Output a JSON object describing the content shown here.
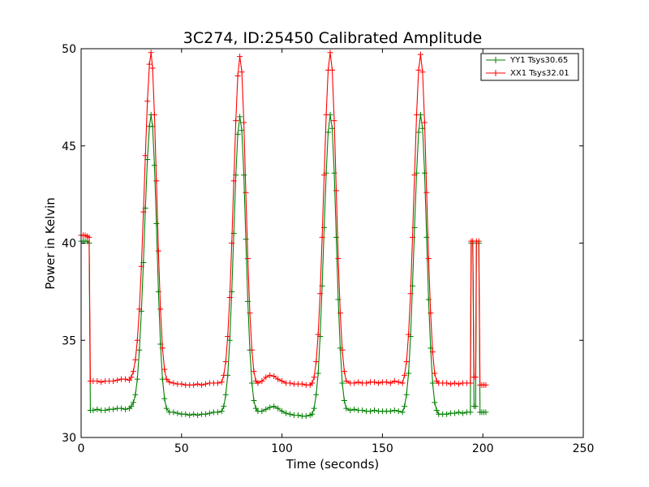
{
  "chart_data": {
    "type": "line",
    "title": "3C274, ID:25450 Calibrated Amplitude",
    "xlabel": "Time (seconds)",
    "ylabel": "Power in Kelvin",
    "xlim": [
      0,
      250
    ],
    "ylim": [
      30,
      50
    ],
    "xticks": [
      "0",
      "50",
      "100",
      "150",
      "200",
      "250"
    ],
    "yticks": [
      "30",
      "35",
      "40",
      "45",
      "50"
    ],
    "grid": false,
    "legend_position": "top-right",
    "marker": "+",
    "series": [
      {
        "name": "YY1 Tsys30.65",
        "color": "#008000",
        "points": [
          [
            0,
            40.1
          ],
          [
            1,
            40.1
          ],
          [
            2,
            40.1
          ],
          [
            3,
            40.1
          ],
          [
            4,
            40.0
          ],
          [
            4.6,
            31.4
          ],
          [
            6,
            31.4
          ],
          [
            8,
            31.45
          ],
          [
            10,
            31.4
          ],
          [
            12,
            31.4
          ],
          [
            14,
            31.45
          ],
          [
            16,
            31.45
          ],
          [
            18,
            31.5
          ],
          [
            20,
            31.5
          ],
          [
            22,
            31.45
          ],
          [
            24,
            31.5
          ],
          [
            25,
            31.6
          ],
          [
            26,
            31.8
          ],
          [
            27,
            32.2
          ],
          [
            28,
            33.0
          ],
          [
            29,
            34.5
          ],
          [
            30,
            36.5
          ],
          [
            31,
            39.0
          ],
          [
            32,
            41.8
          ],
          [
            33,
            44.3
          ],
          [
            34,
            46.0
          ],
          [
            34.8,
            46.6
          ],
          [
            35.6,
            46.0
          ],
          [
            36.5,
            44.0
          ],
          [
            37.5,
            41.0
          ],
          [
            38.5,
            37.5
          ],
          [
            39.5,
            34.8
          ],
          [
            40.5,
            33.0
          ],
          [
            41.5,
            32.0
          ],
          [
            42.5,
            31.5
          ],
          [
            44,
            31.3
          ],
          [
            46,
            31.3
          ],
          [
            48,
            31.25
          ],
          [
            50,
            31.2
          ],
          [
            52,
            31.2
          ],
          [
            54,
            31.15
          ],
          [
            56,
            31.2
          ],
          [
            58,
            31.15
          ],
          [
            60,
            31.2
          ],
          [
            62,
            31.2
          ],
          [
            64,
            31.25
          ],
          [
            66,
            31.3
          ],
          [
            68,
            31.3
          ],
          [
            70,
            31.35
          ],
          [
            71,
            31.6
          ],
          [
            72,
            32.2
          ],
          [
            73,
            33.2
          ],
          [
            74,
            35.0
          ],
          [
            75,
            37.5
          ],
          [
            76,
            40.5
          ],
          [
            77,
            43.5
          ],
          [
            78,
            45.6
          ],
          [
            79,
            46.5
          ],
          [
            80,
            45.8
          ],
          [
            81,
            43.5
          ],
          [
            82,
            40.2
          ],
          [
            83,
            37.0
          ],
          [
            84,
            34.5
          ],
          [
            85,
            32.8
          ],
          [
            86,
            31.9
          ],
          [
            87,
            31.5
          ],
          [
            88,
            31.35
          ],
          [
            90,
            31.35
          ],
          [
            92,
            31.45
          ],
          [
            94,
            31.55
          ],
          [
            96,
            31.6
          ],
          [
            98,
            31.5
          ],
          [
            100,
            31.35
          ],
          [
            102,
            31.25
          ],
          [
            104,
            31.2
          ],
          [
            106,
            31.15
          ],
          [
            108,
            31.15
          ],
          [
            110,
            31.1
          ],
          [
            112,
            31.1
          ],
          [
            114,
            31.15
          ],
          [
            115,
            31.2
          ],
          [
            116,
            31.5
          ],
          [
            117,
            32.2
          ],
          [
            118,
            33.3
          ],
          [
            119,
            35.2
          ],
          [
            120,
            37.8
          ],
          [
            121,
            40.8
          ],
          [
            122,
            43.6
          ],
          [
            123,
            45.7
          ],
          [
            124,
            46.6
          ],
          [
            125,
            45.9
          ],
          [
            126,
            43.6
          ],
          [
            127,
            40.3
          ],
          [
            128,
            37.1
          ],
          [
            129,
            34.6
          ],
          [
            130,
            32.8
          ],
          [
            131,
            31.9
          ],
          [
            132,
            31.5
          ],
          [
            134,
            31.4
          ],
          [
            136,
            31.45
          ],
          [
            138,
            31.4
          ],
          [
            140,
            31.4
          ],
          [
            142,
            31.35
          ],
          [
            144,
            31.35
          ],
          [
            146,
            31.4
          ],
          [
            148,
            31.35
          ],
          [
            150,
            31.35
          ],
          [
            152,
            31.35
          ],
          [
            154,
            31.35
          ],
          [
            156,
            31.4
          ],
          [
            158,
            31.35
          ],
          [
            160,
            31.3
          ],
          [
            161,
            31.6
          ],
          [
            162,
            32.2
          ],
          [
            163,
            33.3
          ],
          [
            164,
            35.2
          ],
          [
            165,
            37.8
          ],
          [
            166,
            40.8
          ],
          [
            167,
            43.6
          ],
          [
            168,
            45.7
          ],
          [
            169,
            46.6
          ],
          [
            170,
            45.9
          ],
          [
            171,
            43.6
          ],
          [
            172,
            40.3
          ],
          [
            173,
            37.1
          ],
          [
            174,
            34.6
          ],
          [
            175,
            32.8
          ],
          [
            176,
            31.8
          ],
          [
            177,
            31.4
          ],
          [
            178,
            31.2
          ],
          [
            180,
            31.2
          ],
          [
            182,
            31.2
          ],
          [
            184,
            31.25
          ],
          [
            186,
            31.25
          ],
          [
            188,
            31.3
          ],
          [
            190,
            31.25
          ],
          [
            192,
            31.3
          ],
          [
            193.8,
            31.3
          ],
          [
            194.2,
            40.0
          ],
          [
            195,
            40.0
          ],
          [
            195.6,
            31.6
          ],
          [
            196.4,
            31.6
          ],
          [
            196.8,
            40.0
          ],
          [
            198,
            40.0
          ],
          [
            198.6,
            31.3
          ],
          [
            199.5,
            31.3
          ],
          [
            200.5,
            31.3
          ],
          [
            201.5,
            31.3
          ]
        ]
      },
      {
        "name": "XX1 Tsys32.01",
        "color": "#ff0000",
        "points": [
          [
            0,
            40.4
          ],
          [
            1,
            40.4
          ],
          [
            2,
            40.4
          ],
          [
            3,
            40.35
          ],
          [
            4,
            40.3
          ],
          [
            4.6,
            32.9
          ],
          [
            6,
            32.9
          ],
          [
            8,
            32.9
          ],
          [
            10,
            32.85
          ],
          [
            12,
            32.9
          ],
          [
            14,
            32.9
          ],
          [
            16,
            32.9
          ],
          [
            18,
            32.95
          ],
          [
            20,
            33.0
          ],
          [
            22,
            33.0
          ],
          [
            24,
            32.95
          ],
          [
            25,
            33.1
          ],
          [
            26,
            33.4
          ],
          [
            27,
            34.0
          ],
          [
            28,
            35.0
          ],
          [
            29,
            36.6
          ],
          [
            30,
            38.8
          ],
          [
            31,
            41.6
          ],
          [
            32,
            44.5
          ],
          [
            33,
            47.3
          ],
          [
            34,
            49.2
          ],
          [
            34.8,
            49.8
          ],
          [
            35.6,
            49.0
          ],
          [
            36.5,
            46.6
          ],
          [
            37.5,
            43.2
          ],
          [
            38.5,
            39.6
          ],
          [
            39.5,
            36.6
          ],
          [
            40.5,
            34.6
          ],
          [
            41.5,
            33.5
          ],
          [
            42.5,
            33.0
          ],
          [
            44,
            32.85
          ],
          [
            46,
            32.8
          ],
          [
            48,
            32.75
          ],
          [
            50,
            32.75
          ],
          [
            52,
            32.7
          ],
          [
            54,
            32.7
          ],
          [
            56,
            32.7
          ],
          [
            58,
            32.75
          ],
          [
            60,
            32.7
          ],
          [
            62,
            32.75
          ],
          [
            64,
            32.8
          ],
          [
            66,
            32.8
          ],
          [
            68,
            32.8
          ],
          [
            70,
            32.85
          ],
          [
            71,
            33.2
          ],
          [
            72,
            33.9
          ],
          [
            73,
            35.2
          ],
          [
            74,
            37.2
          ],
          [
            75,
            40.0
          ],
          [
            76,
            43.2
          ],
          [
            77,
            46.3
          ],
          [
            78,
            48.6
          ],
          [
            79,
            49.6
          ],
          [
            80,
            48.8
          ],
          [
            81,
            46.2
          ],
          [
            82,
            42.6
          ],
          [
            83,
            39.2
          ],
          [
            84,
            36.4
          ],
          [
            85,
            34.5
          ],
          [
            86,
            33.4
          ],
          [
            87,
            32.9
          ],
          [
            88,
            32.8
          ],
          [
            90,
            32.9
          ],
          [
            92,
            33.1
          ],
          [
            94,
            33.2
          ],
          [
            96,
            33.15
          ],
          [
            98,
            33.0
          ],
          [
            100,
            32.9
          ],
          [
            102,
            32.8
          ],
          [
            104,
            32.8
          ],
          [
            106,
            32.75
          ],
          [
            108,
            32.75
          ],
          [
            110,
            32.75
          ],
          [
            112,
            32.7
          ],
          [
            114,
            32.7
          ],
          [
            115,
            32.8
          ],
          [
            116,
            33.1
          ],
          [
            117,
            33.9
          ],
          [
            118,
            35.3
          ],
          [
            119,
            37.4
          ],
          [
            120,
            40.3
          ],
          [
            121,
            43.5
          ],
          [
            122,
            46.6
          ],
          [
            123,
            48.9
          ],
          [
            124,
            49.8
          ],
          [
            125,
            48.9
          ],
          [
            126,
            46.3
          ],
          [
            127,
            42.7
          ],
          [
            128,
            39.2
          ],
          [
            129,
            36.4
          ],
          [
            130,
            34.5
          ],
          [
            131,
            33.4
          ],
          [
            132,
            32.9
          ],
          [
            134,
            32.8
          ],
          [
            136,
            32.8
          ],
          [
            138,
            32.85
          ],
          [
            140,
            32.8
          ],
          [
            142,
            32.8
          ],
          [
            144,
            32.85
          ],
          [
            146,
            32.85
          ],
          [
            148,
            32.8
          ],
          [
            150,
            32.85
          ],
          [
            152,
            32.85
          ],
          [
            154,
            32.8
          ],
          [
            156,
            32.9
          ],
          [
            158,
            32.85
          ],
          [
            160,
            32.8
          ],
          [
            161,
            33.2
          ],
          [
            162,
            33.9
          ],
          [
            163,
            35.3
          ],
          [
            164,
            37.4
          ],
          [
            165,
            40.3
          ],
          [
            166,
            43.5
          ],
          [
            167,
            46.6
          ],
          [
            168,
            48.9
          ],
          [
            169,
            49.7
          ],
          [
            170,
            48.8
          ],
          [
            171,
            46.2
          ],
          [
            172,
            42.6
          ],
          [
            173,
            39.2
          ],
          [
            174,
            36.4
          ],
          [
            175,
            34.4
          ],
          [
            176,
            33.3
          ],
          [
            177,
            32.9
          ],
          [
            178,
            32.8
          ],
          [
            180,
            32.8
          ],
          [
            182,
            32.8
          ],
          [
            184,
            32.75
          ],
          [
            186,
            32.8
          ],
          [
            188,
            32.75
          ],
          [
            190,
            32.8
          ],
          [
            192,
            32.8
          ],
          [
            193.8,
            32.8
          ],
          [
            194.2,
            40.1
          ],
          [
            195,
            40.1
          ],
          [
            195.6,
            33.1
          ],
          [
            196.4,
            33.1
          ],
          [
            196.8,
            40.1
          ],
          [
            198,
            40.1
          ],
          [
            198.6,
            32.7
          ],
          [
            199.5,
            32.7
          ],
          [
            200.5,
            32.7
          ],
          [
            201.5,
            32.7
          ]
        ]
      }
    ]
  }
}
